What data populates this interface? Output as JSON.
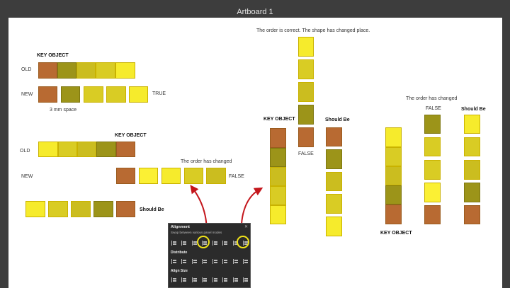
{
  "window": {
    "title": "Artboard 1"
  },
  "colors": {
    "brown": "#b86a32",
    "olive": "#9c9419",
    "mustard": "#cbbd1f",
    "gold": "#d9cc24",
    "yellow": "#f6eb2c",
    "bright": "#fbf034",
    "arrow": "#c4161c",
    "highlight": "#f0e31a",
    "panel_bg": "#2b2b2b"
  },
  "labels": {
    "key_object_1": "KEY OBJECT",
    "old_1": "OLD",
    "new_1": "NEW",
    "true_1": "TRUE",
    "space_note": "3 mm space",
    "key_object_2": "KEY OBJECT",
    "old_2": "OLD",
    "new_2": "NEW",
    "order_changed_1": "The order has changed",
    "false_1": "FALSE",
    "should_be_1": "Should Be",
    "order_correct": "The order is correct. The shape has changed place.",
    "key_object_3": "KEY OBJECT",
    "should_be_2": "Should Be",
    "false_2": "FALSE",
    "order_changed_2": "The order has changed",
    "false_3": "FALSE",
    "should_be_3": "Should Be",
    "key_object_4": "KEY OBJECT"
  },
  "alignment_panel": {
    "title": "Alignment",
    "close": "✕",
    "subtitle": "Swap between various panel modes",
    "distribute": "Distribute",
    "align_size": "Align Size"
  },
  "swatch_groups": [
    {
      "name": "old-row-1",
      "colors": [
        "brown",
        "olive",
        "mustard",
        "gold",
        "yellow"
      ]
    },
    {
      "name": "new-row-1",
      "colors": [
        "brown",
        "olive",
        "gold",
        "gold",
        "yellow"
      ]
    },
    {
      "name": "old-row-2",
      "colors": [
        "yellow",
        "gold",
        "mustard",
        "olive",
        "brown"
      ]
    },
    {
      "name": "new-row-2",
      "colors": [
        "brown",
        "bright",
        "yellow",
        "gold",
        "mustard"
      ]
    },
    {
      "name": "should-be-row",
      "colors": [
        "yellow",
        "gold",
        "mustard",
        "olive",
        "brown"
      ]
    },
    {
      "name": "moved-column",
      "colors": [
        "yellow",
        "gold",
        "mustard",
        "olive",
        "brown"
      ]
    },
    {
      "name": "key-object-column",
      "colors": [
        "brown",
        "olive",
        "mustard",
        "gold",
        "yellow"
      ]
    },
    {
      "name": "should-be-column-1",
      "colors": [
        "brown",
        "olive",
        "mustard",
        "gold",
        "yellow"
      ]
    },
    {
      "name": "key-object-column-2",
      "colors": [
        "yellow",
        "gold",
        "mustard",
        "olive",
        "brown"
      ]
    },
    {
      "name": "false-column",
      "colors": [
        "olive",
        "gold",
        "gold",
        "bright",
        "brown"
      ]
    },
    {
      "name": "should-be-column-2",
      "colors": [
        "yellow",
        "gold",
        "mustard",
        "olive",
        "brown"
      ]
    }
  ]
}
